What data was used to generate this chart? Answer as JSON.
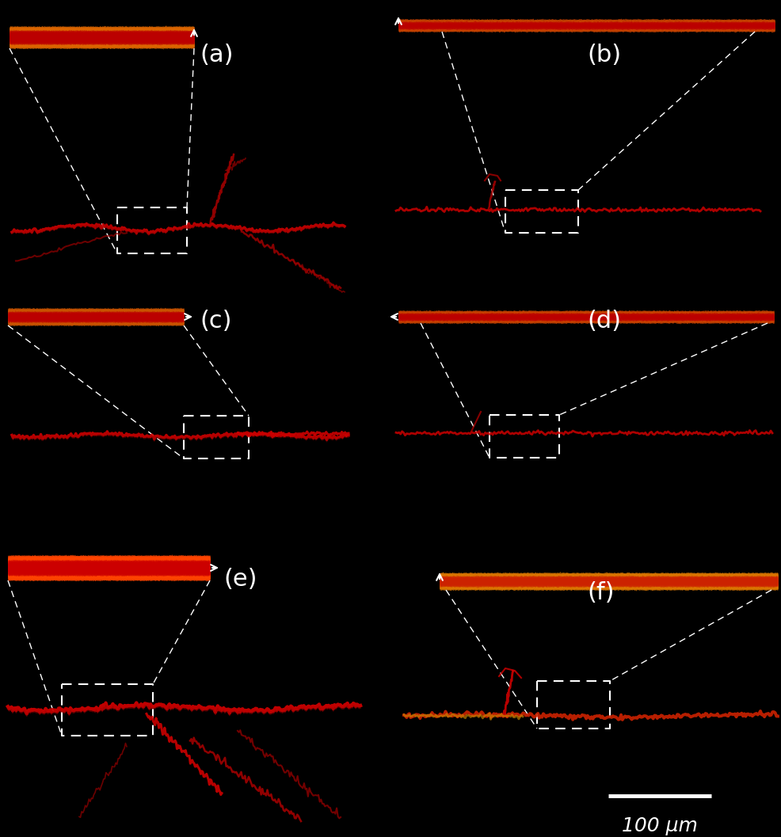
{
  "bg_color": "#000000",
  "fig_width": 9.86,
  "fig_height": 10.57,
  "dpi": 100,
  "panels": [
    "(a)",
    "(b)",
    "(c)",
    "(d)",
    "(e)",
    "(f)"
  ],
  "panel_label_color": "#ffffff",
  "panel_label_fontsize": 22,
  "arrow_color": "#ffffff",
  "dashed_line_color": "#ffffff",
  "scale_bar_color": "#ffffff",
  "scale_bar_text": "100 μm",
  "scale_bar_fontsize": 18
}
